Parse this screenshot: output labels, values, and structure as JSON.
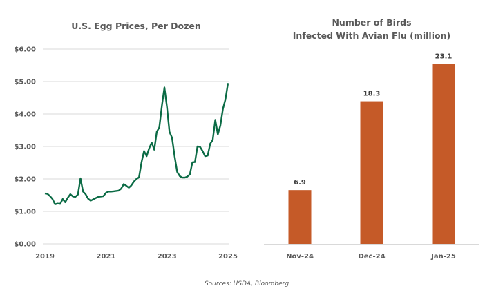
{
  "source_note": "Sources: USDA, Bloomberg",
  "colors": {
    "line": "#0b6b45",
    "bar": "#c55a28",
    "grid": "#d9d9d9",
    "text": "#595959"
  },
  "chart_data": [
    {
      "type": "line",
      "title": "U.S. Egg Prices, Per Dozen",
      "xlabel": "",
      "ylabel": "",
      "ylim": [
        0,
        6
      ],
      "xlim": [
        2019,
        2025
      ],
      "grid": true,
      "legend": "none",
      "y_ticks": [
        "$0.00",
        "$1.00",
        "$2.00",
        "$3.00",
        "$4.00",
        "$5.00",
        "$6.00"
      ],
      "y_tick_values": [
        0,
        1,
        2,
        3,
        4,
        5,
        6
      ],
      "x_ticks": [
        "2019",
        "2021",
        "2023",
        "2025"
      ],
      "x_tick_values": [
        2019,
        2021,
        2023,
        2025
      ],
      "series": [
        {
          "name": "Egg price per dozen (USD)",
          "x_start": "2019-01",
          "frequency": "monthly",
          "values": [
            1.55,
            1.54,
            1.47,
            1.38,
            1.22,
            1.24,
            1.23,
            1.38,
            1.28,
            1.42,
            1.53,
            1.46,
            1.45,
            1.52,
            2.02,
            1.61,
            1.53,
            1.39,
            1.33,
            1.37,
            1.41,
            1.45,
            1.46,
            1.47,
            1.57,
            1.61,
            1.61,
            1.62,
            1.63,
            1.64,
            1.7,
            1.84,
            1.79,
            1.73,
            1.8,
            1.92,
            2.0,
            2.05,
            2.52,
            2.86,
            2.7,
            2.94,
            3.12,
            2.9,
            3.45,
            3.59,
            4.25,
            4.82,
            4.21,
            3.45,
            3.27,
            2.7,
            2.22,
            2.09,
            2.04,
            2.04,
            2.07,
            2.14,
            2.51,
            2.52,
            3.0,
            2.99,
            2.86,
            2.7,
            2.72,
            3.08,
            3.2,
            3.82,
            3.37,
            3.65,
            4.15,
            4.45,
            4.95
          ]
        }
      ]
    },
    {
      "type": "bar",
      "title": "Number of Birds\nInfected With Avian Flu (million)",
      "title_lines": [
        "Number of Birds",
        "Infected With Avian Flu (million)"
      ],
      "xlabel": "",
      "ylabel": "",
      "ylim": [
        0,
        25
      ],
      "grid": false,
      "legend": "none",
      "categories": [
        "Nov-24",
        "Dec-24",
        "Jan-25"
      ],
      "values": [
        6.9,
        18.3,
        23.1
      ],
      "data_labels": [
        "6.9",
        "18.3",
        "23.1"
      ]
    }
  ]
}
